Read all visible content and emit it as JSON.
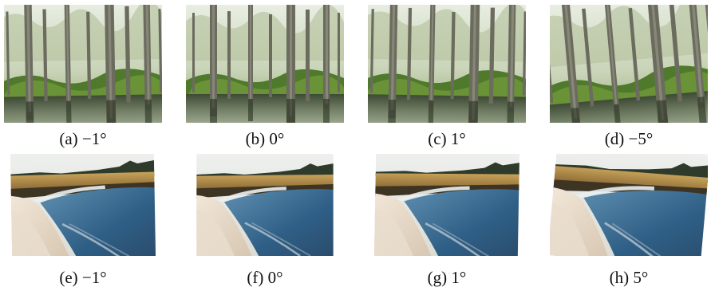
{
  "figure": {
    "row1": {
      "scene": "cypress-swamp",
      "panels": [
        {
          "label": "(a)",
          "angle": "−1°",
          "rotation_deg": -1
        },
        {
          "label": "(b)",
          "angle": "0°",
          "rotation_deg": 0
        },
        {
          "label": "(c)",
          "angle": "1°",
          "rotation_deg": 1
        },
        {
          "label": "(d)",
          "angle": "−5°",
          "rotation_deg": -5
        }
      ]
    },
    "row2": {
      "scene": "marsh-shore",
      "panels": [
        {
          "label": "(e)",
          "angle": "−1°",
          "rotation_deg": -1
        },
        {
          "label": "(f)",
          "angle": "0°",
          "rotation_deg": 0
        },
        {
          "label": "(g)",
          "angle": "1°",
          "rotation_deg": 1
        },
        {
          "label": "(h)",
          "angle": "5°",
          "rotation_deg": 5
        }
      ]
    }
  }
}
